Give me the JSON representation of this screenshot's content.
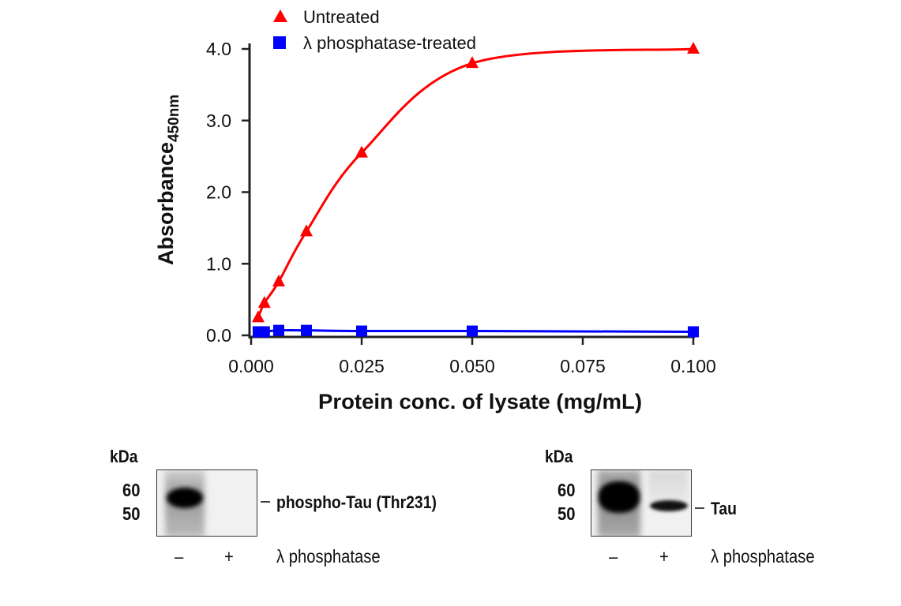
{
  "chart_data": {
    "type": "line",
    "xlabel": "Protein conc. of lysate (mg/mL)",
    "ylabel": "Absorbance",
    "ylabel_subscript": "450nm",
    "xlim": [
      0,
      0.1
    ],
    "ylim": [
      0,
      4.0
    ],
    "xticks": [
      "0.000",
      "0.025",
      "0.050",
      "0.075",
      "0.100"
    ],
    "yticks": [
      "0.0",
      "1.0",
      "2.0",
      "3.0",
      "4.0"
    ],
    "grid": false,
    "legend_position": "top",
    "series": [
      {
        "name": "Untreated",
        "color": "#ff0000",
        "marker": "triangle",
        "x": [
          0.0016,
          0.003,
          0.00625,
          0.0125,
          0.025,
          0.05,
          0.1
        ],
        "y": [
          0.25,
          0.45,
          0.75,
          1.45,
          2.55,
          3.8,
          4.0
        ]
      },
      {
        "name": "λ phosphatase-treated",
        "color": "#0000ff",
        "marker": "square",
        "x": [
          0.0016,
          0.003,
          0.00625,
          0.0125,
          0.025,
          0.05,
          0.1
        ],
        "y": [
          0.05,
          0.05,
          0.07,
          0.07,
          0.06,
          0.06,
          0.05
        ]
      }
    ]
  },
  "blots": [
    {
      "kda_label": "kDa",
      "markers": [
        "60",
        "50"
      ],
      "protein": "phospho-Tau (Thr231)",
      "lanes": [
        "–",
        "+"
      ],
      "treatment": "λ phosphatase"
    },
    {
      "kda_label": "kDa",
      "markers": [
        "60",
        "50"
      ],
      "protein": "Tau",
      "lanes": [
        "–",
        "+"
      ],
      "treatment": "λ phosphatase"
    }
  ]
}
